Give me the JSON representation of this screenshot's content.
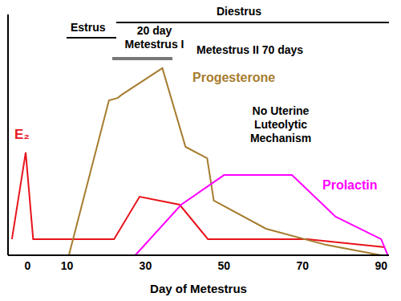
{
  "chart_data": {
    "type": "line",
    "x_label": "Day of Metestrus",
    "xlim": [
      -5,
      92
    ],
    "xticks": [
      0,
      10,
      30,
      50,
      70,
      90
    ],
    "ylim": [
      0,
      100
    ],
    "yticks": [],
    "tick_labels": "x",
    "grid": false,
    "series": [
      {
        "name": "E₂",
        "color": "#e8141c",
        "x": [
          -4,
          -0.5,
          1.4,
          22,
          28.5,
          38.7,
          45.9,
          71.2,
          91
        ],
        "values": [
          6.7,
          42.7,
          6.7,
          6.7,
          24.3,
          21,
          6.7,
          6.7,
          3.3
        ]
      },
      {
        "name": "Progesterone",
        "color": "#a67c2e",
        "x": [
          10.5,
          20.7,
          22.9,
          24,
          34.3,
          40.2,
          45.7,
          47.4,
          60.7,
          76,
          90
        ],
        "values": [
          0,
          64.3,
          65.3,
          66.7,
          77.7,
          45,
          40.3,
          22.7,
          11,
          4.3,
          0
        ]
      },
      {
        "name": "Prolactin",
        "color": "#ff00ff",
        "x": [
          27.4,
          39.1,
          50,
          67.3,
          78.4,
          90,
          91.7
        ],
        "values": [
          0,
          21,
          33.3,
          33.3,
          16,
          6.7,
          0
        ]
      }
    ],
    "annotations": [
      "Estrus",
      [
        "20 day",
        "Metestrus I"
      ],
      "Diestrus",
      "Metestrus II 70 days",
      [
        "No Uterine",
        "Luteolytic",
        "Mechanism"
      ]
    ]
  }
}
